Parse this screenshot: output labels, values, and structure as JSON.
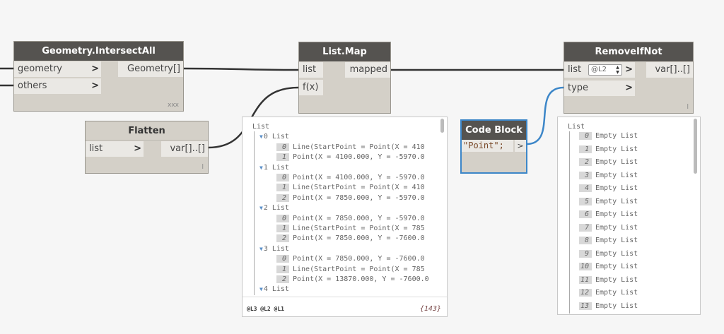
{
  "nodes": {
    "intersect": {
      "title": "Geometry.IntersectAll",
      "inputs": [
        "geometry",
        "others"
      ],
      "output": "Geometry[]",
      "lacing": "xxx"
    },
    "flatten": {
      "title": "Flatten",
      "inputs": [
        "list"
      ],
      "output": "var[]..[]",
      "lacing": "l"
    },
    "listmap": {
      "title": "List.Map",
      "inputs": [
        "list",
        "f(x)"
      ],
      "output": "mapped"
    },
    "codeblock": {
      "title": "Code Block",
      "code": "\"Point\";",
      "output": ">"
    },
    "removeifnot": {
      "title": "RemoveIfNot",
      "inputs": [
        "list",
        "type"
      ],
      "level": "@L2",
      "output": "var[]..[]",
      "lacing": "l"
    }
  },
  "chevron": ">",
  "watch_map": {
    "root": "List",
    "groups": [
      {
        "label": "0 List",
        "items": [
          "Line(StartPoint = Point(X = 410",
          "Point(X = 4100.000, Y = -5970.0"
        ]
      },
      {
        "label": "1 List",
        "items": [
          "Point(X = 4100.000, Y = -5970.0",
          "Line(StartPoint = Point(X = 410",
          "Point(X = 7850.000, Y = -5970.0"
        ]
      },
      {
        "label": "2 List",
        "items": [
          "Point(X = 7850.000, Y = -5970.0",
          "Line(StartPoint = Point(X = 785",
          "Point(X = 7850.000, Y = -7600.0"
        ]
      },
      {
        "label": "3 List",
        "items": [
          "Point(X = 7850.000, Y = -7600.0",
          "Line(StartPoint = Point(X = 785",
          "Point(X = 13870.000, Y = -7600.0"
        ]
      },
      {
        "label": "4 List",
        "items": []
      }
    ],
    "levels": "@L3 @L2 @L1",
    "count": "{143}"
  },
  "watch_remove": {
    "root": "List",
    "items": [
      "Empty List",
      "Empty List",
      "Empty List",
      "Empty List",
      "Empty List",
      "Empty List",
      "Empty List",
      "Empty List",
      "Empty List",
      "Empty List",
      "Empty List",
      "Empty List",
      "Empty List",
      "Empty List"
    ]
  },
  "colors": {
    "header": "#555350",
    "node": "#d4d0c8",
    "wire": "#333333",
    "selected": "#3c86c8"
  }
}
